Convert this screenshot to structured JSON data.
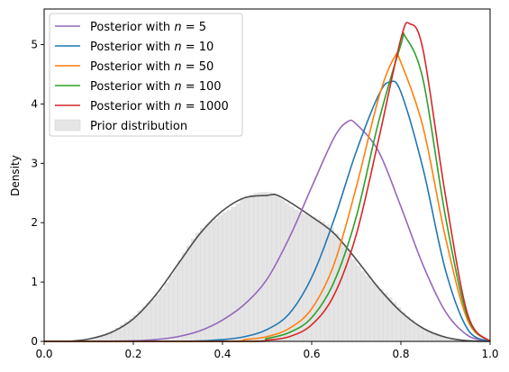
{
  "chart_data": {
    "type": "line",
    "ylabel": "Density",
    "xlim": [
      0.0,
      1.0
    ],
    "ylim": [
      0,
      5.6
    ],
    "xticks": [
      "0.0",
      "0.2",
      "0.4",
      "0.6",
      "0.8",
      "1.0"
    ],
    "yticks": [
      "0",
      "1",
      "2",
      "3",
      "4",
      "5"
    ],
    "grid": false,
    "legend_position": "top-left",
    "series": [
      {
        "name": "Posterior with n = 5",
        "legend_prefix": "Posterior with ",
        "legend_var": "n",
        "legend_suffix": " = 5",
        "color": "#9467bd",
        "x": [
          0.0,
          0.1,
          0.2,
          0.25,
          0.3,
          0.35,
          0.4,
          0.45,
          0.5,
          0.55,
          0.6,
          0.65,
          0.68,
          0.7,
          0.75,
          0.8,
          0.85,
          0.9,
          0.95,
          1.0
        ],
        "y": [
          0.0,
          0.0,
          0.01,
          0.03,
          0.08,
          0.18,
          0.36,
          0.63,
          1.05,
          1.75,
          2.6,
          3.43,
          3.7,
          3.66,
          3.2,
          2.27,
          1.28,
          0.5,
          0.1,
          0.0
        ]
      },
      {
        "name": "Posterior with n = 10",
        "legend_prefix": "Posterior with ",
        "legend_var": "n",
        "legend_suffix": " = 10",
        "color": "#1f77b4",
        "x": [
          0.0,
          0.3,
          0.4,
          0.45,
          0.5,
          0.55,
          0.6,
          0.65,
          0.7,
          0.75,
          0.775,
          0.8,
          0.85,
          0.9,
          0.95,
          1.0
        ],
        "y": [
          0.0,
          0.0,
          0.03,
          0.08,
          0.2,
          0.47,
          1.08,
          2.05,
          3.2,
          4.15,
          4.37,
          4.2,
          2.9,
          1.2,
          0.2,
          0.0
        ]
      },
      {
        "name": "Posterior with n = 50",
        "legend_prefix": "Posterior with ",
        "legend_var": "n",
        "legend_suffix": " = 50",
        "color": "#ff7f0e",
        "x": [
          0.0,
          0.4,
          0.45,
          0.5,
          0.55,
          0.6,
          0.65,
          0.7,
          0.75,
          0.785,
          0.8,
          0.85,
          0.9,
          0.95,
          1.0
        ],
        "y": [
          0.0,
          0.0,
          0.03,
          0.08,
          0.22,
          0.55,
          1.3,
          2.6,
          4.1,
          4.78,
          4.7,
          3.6,
          1.75,
          0.35,
          0.0
        ]
      },
      {
        "name": "Posterior with n = 100",
        "legend_prefix": "Posterior with ",
        "legend_var": "n",
        "legend_suffix": " = 100",
        "color": "#2ca02c",
        "x": [
          0.0,
          0.45,
          0.5,
          0.55,
          0.6,
          0.65,
          0.7,
          0.75,
          0.8,
          0.81,
          0.85,
          0.9,
          0.95,
          1.0
        ],
        "y": [
          0.0,
          0.0,
          0.05,
          0.15,
          0.4,
          1.0,
          2.1,
          3.7,
          5.0,
          5.13,
          4.4,
          2.1,
          0.4,
          0.0
        ]
      },
      {
        "name": "Posterior with n = 1000",
        "legend_prefix": "Posterior with ",
        "legend_var": "n",
        "legend_suffix": " = 1000",
        "color": "#d62728",
        "x": [
          0.0,
          0.45,
          0.5,
          0.55,
          0.6,
          0.65,
          0.7,
          0.75,
          0.8,
          0.82,
          0.85,
          0.9,
          0.95,
          1.0
        ],
        "y": [
          0.0,
          0.0,
          0.02,
          0.08,
          0.28,
          0.78,
          1.8,
          3.4,
          5.1,
          5.35,
          4.9,
          2.45,
          0.45,
          0.0
        ]
      }
    ],
    "prior": {
      "name": "Prior distribution",
      "fill_color": "#e5e5e5",
      "line_color": "#4d4d4d",
      "x": [
        0.0,
        0.05,
        0.1,
        0.15,
        0.2,
        0.25,
        0.3,
        0.35,
        0.4,
        0.45,
        0.5,
        0.52,
        0.55,
        0.6,
        0.65,
        0.7,
        0.75,
        0.8,
        0.85,
        0.9,
        0.95,
        1.0
      ],
      "y": [
        0.0,
        0.0,
        0.04,
        0.15,
        0.38,
        0.78,
        1.3,
        1.82,
        2.2,
        2.42,
        2.46,
        2.47,
        2.35,
        2.1,
        1.82,
        1.38,
        0.9,
        0.5,
        0.22,
        0.07,
        0.01,
        0.0
      ]
    }
  }
}
